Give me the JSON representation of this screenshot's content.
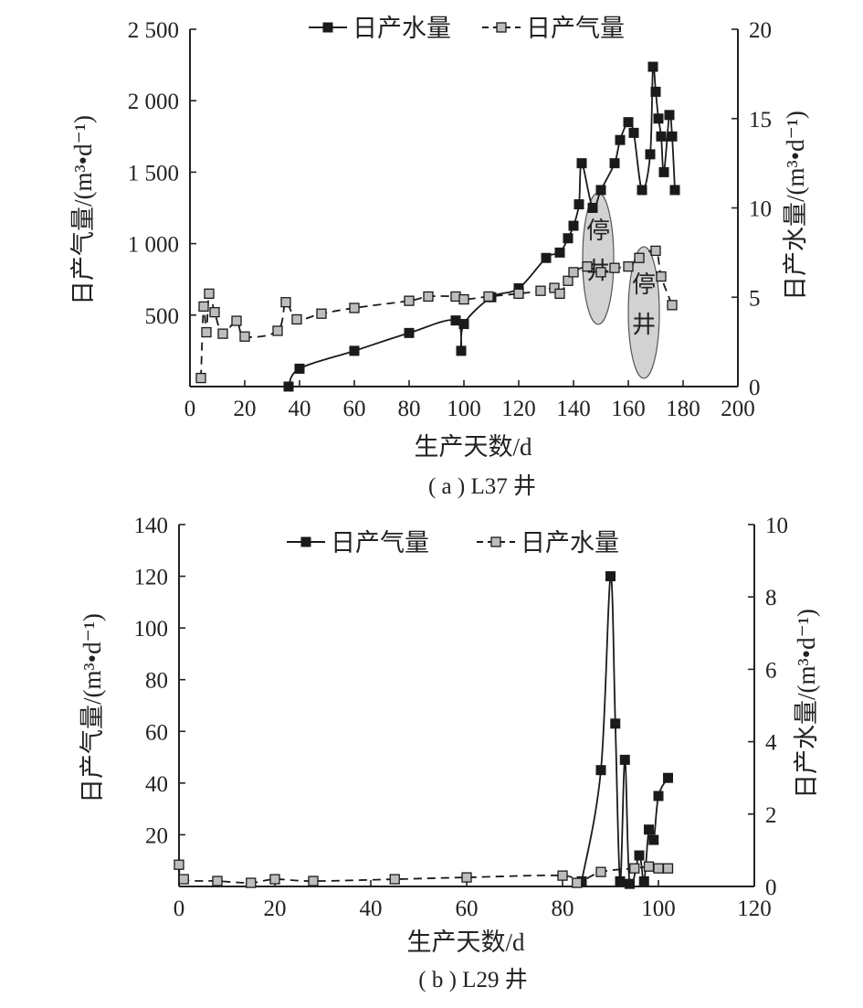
{
  "chart_data": [
    {
      "type": "line",
      "caption": "( a ) L37 井",
      "xlabel": "生产天数/d",
      "ylabel_left": "日产气量/(m³•d⁻¹)",
      "ylabel_right": "日产水量/(m³•d⁻¹)",
      "xlim": [
        0,
        200
      ],
      "ylim_left": [
        0,
        2500
      ],
      "ylim_right": [
        0,
        20
      ],
      "x_ticks": [
        "0",
        "20",
        "40",
        "60",
        "80",
        "100",
        "120",
        "140",
        "160",
        "180",
        "200"
      ],
      "yleft_ticks": [
        "500",
        "1 000",
        "1 500",
        "2 000",
        "2 500"
      ],
      "yright_ticks": [
        "0",
        "5",
        "10",
        "15",
        "20"
      ],
      "legend_position": "top-center",
      "annotations": [
        "停井",
        "停井"
      ],
      "series": [
        {
          "name": "日产水量",
          "axis": "right",
          "style": "solid-line-black-square",
          "points": [
            [
              36,
              0
            ],
            [
              40,
              1
            ],
            [
              60,
              2
            ],
            [
              80,
              3
            ],
            [
              97,
              3.7
            ],
            [
              99,
              2
            ],
            [
              100,
              3.5
            ],
            [
              110,
              5
            ],
            [
              120,
              5.5
            ],
            [
              130,
              7.2
            ],
            [
              135,
              7.5
            ],
            [
              138,
              8.3
            ],
            [
              140,
              9
            ],
            [
              142,
              10.2
            ],
            [
              143,
              12.5
            ],
            [
              147,
              10
            ],
            [
              150,
              11
            ],
            [
              155,
              12.5
            ],
            [
              157,
              13.8
            ],
            [
              160,
              14.8
            ],
            [
              162,
              14.2
            ],
            [
              165,
              11
            ],
            [
              168,
              13
            ],
            [
              169,
              17.9
            ],
            [
              170,
              16.5
            ],
            [
              171,
              15
            ],
            [
              172,
              14
            ],
            [
              173,
              12
            ],
            [
              175,
              15.2
            ],
            [
              176,
              14
            ],
            [
              177,
              11
            ]
          ]
        },
        {
          "name": "日产气量",
          "axis": "left",
          "style": "dashed-line-gray-square",
          "points": [
            [
              4,
              60
            ],
            [
              5,
              560
            ],
            [
              6,
              380
            ],
            [
              7,
              650
            ],
            [
              9,
              520
            ],
            [
              12,
              370
            ],
            [
              17,
              460
            ],
            [
              20,
              350
            ],
            [
              32,
              390
            ],
            [
              35,
              590
            ],
            [
              39,
              470
            ],
            [
              48,
              510
            ],
            [
              60,
              550
            ],
            [
              80,
              600
            ],
            [
              87,
              630
            ],
            [
              97,
              630
            ],
            [
              100,
              610
            ],
            [
              109,
              630
            ],
            [
              120,
              650
            ],
            [
              128,
              670
            ],
            [
              133,
              690
            ],
            [
              135,
              650
            ],
            [
              138,
              740
            ],
            [
              140,
              800
            ],
            [
              145,
              840
            ],
            [
              150,
              800
            ],
            [
              155,
              830
            ],
            [
              160,
              840
            ],
            [
              164,
              900
            ],
            [
              170,
              950
            ],
            [
              172,
              770
            ],
            [
              176,
              570
            ]
          ]
        }
      ]
    },
    {
      "type": "line",
      "caption": "( b ) L29 井",
      "xlabel": "生产天数/d",
      "ylabel_left": "日产气量/(m³•d⁻¹)",
      "ylabel_right": "日产水量/(m³•d⁻¹)",
      "xlim": [
        0,
        120
      ],
      "ylim_left": [
        0,
        140
      ],
      "ylim_right": [
        0,
        10
      ],
      "x_ticks": [
        "0",
        "20",
        "40",
        "60",
        "80",
        "100",
        "120"
      ],
      "yleft_ticks": [
        "20",
        "40",
        "60",
        "80",
        "100",
        "120",
        "140"
      ],
      "yright_ticks": [
        "0",
        "2",
        "4",
        "6",
        "8",
        "10"
      ],
      "legend_position": "top-center",
      "series": [
        {
          "name": "日产气量",
          "axis": "left",
          "style": "solid-line-black-square",
          "points": [
            [
              84,
              2
            ],
            [
              88,
              45
            ],
            [
              90,
              120
            ],
            [
              91,
              63
            ],
            [
              92,
              2
            ],
            [
              93,
              49
            ],
            [
              94,
              1
            ],
            [
              96,
              12
            ],
            [
              97,
              2
            ],
            [
              98,
              22
            ],
            [
              99,
              18
            ],
            [
              100,
              35
            ],
            [
              102,
              42
            ]
          ]
        },
        {
          "name": "日产水量",
          "axis": "right",
          "style": "dashed-line-gray-square",
          "points": [
            [
              0,
              0.6
            ],
            [
              1,
              0.2
            ],
            [
              8,
              0.15
            ],
            [
              15,
              0.1
            ],
            [
              20,
              0.2
            ],
            [
              28,
              0.15
            ],
            [
              45,
              0.2
            ],
            [
              60,
              0.25
            ],
            [
              80,
              0.3
            ],
            [
              83,
              0.1
            ],
            [
              88,
              0.4
            ],
            [
              95,
              0.5
            ],
            [
              98,
              0.55
            ],
            [
              100,
              0.5
            ],
            [
              102,
              0.5
            ]
          ]
        }
      ]
    }
  ]
}
